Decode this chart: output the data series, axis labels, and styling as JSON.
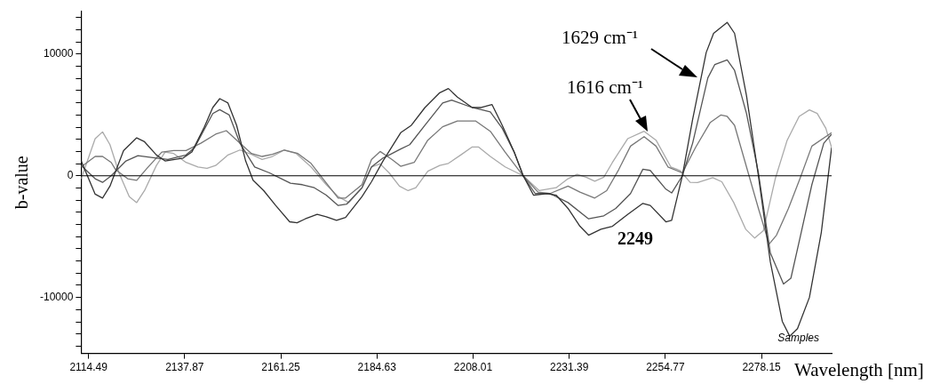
{
  "chart_data": {
    "type": "line",
    "xlabel": "Wavelength [nm]",
    "ylabel": "b-value",
    "xlim": [
      2112.7,
      2295.2
    ],
    "ylim": [
      -14600,
      13500
    ],
    "xticks": [
      2114.49,
      2137.87,
      2161.25,
      2184.63,
      2208.01,
      2231.39,
      2254.77,
      2278.15
    ],
    "yticks": [
      {
        "value": -14000,
        "label": null
      },
      {
        "value": -13000,
        "label": null
      },
      {
        "value": -12000,
        "label": null
      },
      {
        "value": -11000,
        "label": null
      },
      -10000,
      {
        "value": -9000,
        "label": null
      },
      {
        "value": -8000,
        "label": null
      },
      {
        "value": -7000,
        "label": null
      },
      {
        "value": -6000,
        "label": null
      },
      {
        "value": -5000,
        "label": null
      },
      {
        "value": -4000,
        "label": null
      },
      {
        "value": -3000,
        "label": null
      },
      {
        "value": -2000,
        "label": null
      },
      {
        "value": -1000,
        "label": null
      },
      0,
      {
        "value": 1000,
        "label": null
      },
      {
        "value": 2000,
        "label": null
      },
      {
        "value": 3000,
        "label": null
      },
      {
        "value": 4000,
        "label": null
      },
      {
        "value": 5000,
        "label": null
      },
      {
        "value": 6000,
        "label": null
      },
      {
        "value": 7000,
        "label": null
      },
      {
        "value": 8000,
        "label": null
      },
      {
        "value": 9000,
        "label": null
      },
      10000,
      {
        "value": 11000,
        "label": null
      },
      {
        "value": 12000,
        "label": null
      },
      {
        "value": 13000,
        "label": null
      }
    ],
    "grid": false,
    "legend": false,
    "marker": "none",
    "line_style": "solid",
    "ref_lines": [
      {
        "axis": "y",
        "value": 0,
        "color": "#000000"
      }
    ],
    "annotations": [
      "1629 cm⁻¹",
      "1616 cm⁻¹",
      "2249",
      "Samples"
    ],
    "series": [
      {
        "color": "#333333",
        "x": [
          2112.7,
          2116.1,
          2117.9,
          2119.7,
          2123.0,
          2126.2,
          2128.1,
          2131.0,
          2133.1,
          2137.5,
          2139.6,
          2142.5,
          2144.7,
          2146.4,
          2148.4,
          2150.5,
          2152.7,
          2154.5,
          2157.1,
          2160.0,
          2163.4,
          2165.2,
          2167.2,
          2170.1,
          2172.3,
          2174.8,
          2177.0,
          2181.0,
          2183.3,
          2186.1,
          2190.4,
          2193.0,
          2196.3,
          2199.9,
          2202.0,
          2204.2,
          2207.8,
          2210.0,
          2212.6,
          2215.1,
          2218.0,
          2220.2,
          2222.7,
          2226.0,
          2228.2,
          2231.1,
          2234.0,
          2236.1,
          2239.1,
          2241.9,
          2245.6,
          2249.3,
          2251.1,
          2254.9,
          2256.3,
          2258.9,
          2261.4,
          2264.7,
          2266.5,
          2269.8,
          2271.6,
          2274.5,
          2277.4,
          2280.3,
          2283.2,
          2285.0,
          2286.9,
          2289.8,
          2292.7,
          2295.2
        ],
        "values": [
          1220,
          -1510,
          -1830,
          -850,
          2070,
          3120,
          2800,
          1710,
          1220,
          1460,
          1950,
          3900,
          5610,
          6340,
          5980,
          4150,
          1220,
          -370,
          -1220,
          -2440,
          -3780,
          -3860,
          -3540,
          -3170,
          -3370,
          -3660,
          -3420,
          -1710,
          -490,
          1220,
          3540,
          4150,
          5610,
          6830,
          7170,
          6470,
          5610,
          5610,
          5860,
          4150,
          1950,
          0,
          -1590,
          -1460,
          -1590,
          -2680,
          -4150,
          -4880,
          -4390,
          -4150,
          -3170,
          -2270,
          -2440,
          -3780,
          -3660,
          0,
          4640,
          10130,
          11710,
          12610,
          11710,
          6590,
          0,
          -7080,
          -11960,
          -13180,
          -12570,
          -10000,
          -4640,
          2320
        ]
      },
      {
        "color": "#555555",
        "x": [
          2112.7,
          2116.1,
          2117.9,
          2120.0,
          2123.6,
          2126.5,
          2131.0,
          2133.8,
          2138.2,
          2140.3,
          2144.7,
          2146.4,
          2148.7,
          2151.3,
          2154.9,
          2158.5,
          2161.4,
          2163.6,
          2166.5,
          2169.4,
          2172.3,
          2175.2,
          2177.3,
          2181.0,
          2183.3,
          2186.1,
          2187.6,
          2190.4,
          2192.6,
          2196.3,
          2200.6,
          2202.8,
          2207.8,
          2212.2,
          2215.1,
          2218.0,
          2220.2,
          2223.1,
          2226.7,
          2231.1,
          2236.1,
          2239.8,
          2242.7,
          2246.3,
          2249.3,
          2251.1,
          2254.9,
          2256.3,
          2258.9,
          2261.4,
          2265.1,
          2266.8,
          2269.8,
          2271.6,
          2274.5,
          2277.4,
          2280.3,
          2283.5,
          2285.3,
          2287.5,
          2290.4,
          2293.3,
          2295.2
        ],
        "values": [
          850,
          -240,
          -540,
          0,
          1220,
          1660,
          1460,
          1340,
          1710,
          2320,
          5120,
          5440,
          5000,
          2680,
          730,
          240,
          -240,
          -610,
          -730,
          -980,
          -1590,
          -2440,
          -2320,
          -980,
          730,
          1460,
          1710,
          2200,
          2560,
          4150,
          5980,
          6220,
          5610,
          5250,
          3900,
          1950,
          0,
          -1460,
          -1460,
          -2200,
          -3540,
          -3290,
          -2680,
          -1460,
          540,
          440,
          -1100,
          -1410,
          0,
          2680,
          8050,
          9150,
          9520,
          8660,
          5120,
          240,
          -6340,
          -8900,
          -8420,
          -5120,
          -730,
          2680,
          3420
        ]
      },
      {
        "color": "#777777",
        "x": [
          2112.7,
          2116.1,
          2117.9,
          2120.0,
          2121.1,
          2124.0,
          2126.2,
          2128.7,
          2132.3,
          2135.2,
          2138.2,
          2141.8,
          2145.4,
          2148.0,
          2151.3,
          2154.1,
          2156.7,
          2159.2,
          2162.1,
          2165.4,
          2168.6,
          2171.5,
          2175.2,
          2177.0,
          2181.0,
          2183.3,
          2185.4,
          2188.3,
          2190.4,
          2193.7,
          2197.0,
          2200.6,
          2204.2,
          2208.6,
          2212.2,
          2215.8,
          2220.2,
          2223.8,
          2226.7,
          2231.1,
          2234.0,
          2237.6,
          2240.5,
          2243.4,
          2246.3,
          2249.6,
          2252.5,
          2255.4,
          2258.9,
          2262.1,
          2265.7,
          2268.3,
          2269.8,
          2271.6,
          2274.5,
          2277.4,
          2280.0,
          2281.8,
          2284.7,
          2287.5,
          2290.4,
          2295.2
        ],
        "values": [
          730,
          1590,
          1590,
          1100,
          490,
          -240,
          -370,
          610,
          1950,
          2070,
          2070,
          2680,
          3420,
          3710,
          2680,
          1830,
          1590,
          1760,
          2120,
          1830,
          1020,
          -240,
          -1830,
          -1830,
          -730,
          1340,
          2000,
          1340,
          780,
          1100,
          2930,
          4030,
          4510,
          4510,
          3660,
          1950,
          0,
          -1340,
          -1460,
          -850,
          -1340,
          -1830,
          -1220,
          490,
          2440,
          3220,
          2440,
          730,
          240,
          2320,
          4390,
          5000,
          4880,
          4150,
          730,
          -2680,
          -5610,
          -4880,
          -2680,
          -240,
          2440,
          3540
        ]
      },
      {
        "color": "#aaaaaa",
        "x": [
          2112.7,
          2116.1,
          2117.9,
          2119.7,
          2121.9,
          2124.4,
          2126.2,
          2128.1,
          2131.0,
          2133.1,
          2135.2,
          2138.2,
          2141.1,
          2143.3,
          2145.4,
          2148.4,
          2151.3,
          2154.1,
          2156.7,
          2159.2,
          2162.1,
          2165.0,
          2168.6,
          2172.3,
          2175.2,
          2177.8,
          2181.0,
          2183.3,
          2185.4,
          2187.6,
          2190.1,
          2192.2,
          2194.1,
          2197.0,
          2199.9,
          2202.0,
          2205.0,
          2207.8,
          2209.3,
          2212.2,
          2215.8,
          2220.2,
          2224.1,
          2228.2,
          2231.1,
          2233.3,
          2235.5,
          2237.6,
          2239.8,
          2241.9,
          2245.6,
          2249.6,
          2252.5,
          2256.1,
          2258.3,
          2260.8,
          2262.6,
          2266.3,
          2268.5,
          2271.4,
          2274.3,
          2276.5,
          2278.6,
          2281.5,
          2284.4,
          2287.3,
          2289.8,
          2291.7,
          2293.8,
          2295.2
        ],
        "values": [
          -240,
          3050,
          3610,
          2560,
          240,
          -1710,
          -2200,
          -1220,
          850,
          1950,
          1830,
          1100,
          730,
          610,
          850,
          1710,
          2120,
          1760,
          1340,
          1590,
          2120,
          1830,
          730,
          -730,
          -1710,
          -2200,
          -980,
          730,
          980,
          240,
          -850,
          -1220,
          -980,
          370,
          850,
          1020,
          1710,
          2370,
          2370,
          1590,
          730,
          0,
          -1220,
          -980,
          -240,
          120,
          -120,
          -440,
          -120,
          1100,
          3050,
          3660,
          2930,
          730,
          440,
          -540,
          -560,
          -150,
          -490,
          -2200,
          -4390,
          -5120,
          -4510,
          -240,
          2930,
          4880,
          5420,
          5120,
          3900,
          2320
        ]
      }
    ]
  }
}
